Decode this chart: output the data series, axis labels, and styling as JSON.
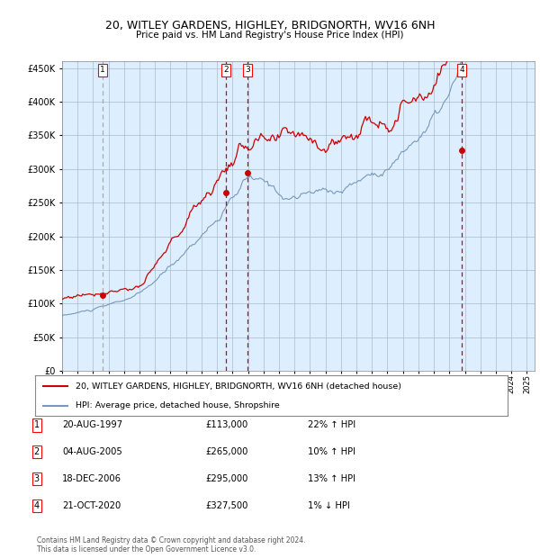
{
  "title_line1": "20, WITLEY GARDENS, HIGHLEY, BRIDGNORTH, WV16 6NH",
  "title_line2": "Price paid vs. HM Land Registry's House Price Index (HPI)",
  "legend_label1": "20, WITLEY GARDENS, HIGHLEY, BRIDGNORTH, WV16 6NH (detached house)",
  "legend_label2": "HPI: Average price, detached house, Shropshire",
  "red_color": "#cc0000",
  "blue_color": "#7799bb",
  "background_color": "#ddeeff",
  "trans_dates": [
    1997.63,
    2005.59,
    2006.96,
    2020.81
  ],
  "trans_prices": [
    113000,
    265000,
    295000,
    327500
  ],
  "trans_labels": [
    "1",
    "2",
    "3",
    "4"
  ],
  "table_rows": [
    {
      "num": "1",
      "date": "20-AUG-1997",
      "price": "£113,000",
      "change": "22% ↑ HPI"
    },
    {
      "num": "2",
      "date": "04-AUG-2005",
      "price": "£265,000",
      "change": "10% ↑ HPI"
    },
    {
      "num": "3",
      "date": "18-DEC-2006",
      "price": "£295,000",
      "change": "13% ↑ HPI"
    },
    {
      "num": "4",
      "date": "21-OCT-2020",
      "price": "£327,500",
      "change": "1% ↓ HPI"
    }
  ],
  "footer": "Contains HM Land Registry data © Crown copyright and database right 2024.\nThis data is licensed under the Open Government Licence v3.0.",
  "ylim": [
    0,
    460000
  ],
  "yticks": [
    0,
    50000,
    100000,
    150000,
    200000,
    250000,
    300000,
    350000,
    400000,
    450000
  ],
  "xlim_start": 1995.0,
  "xlim_end": 2025.5
}
